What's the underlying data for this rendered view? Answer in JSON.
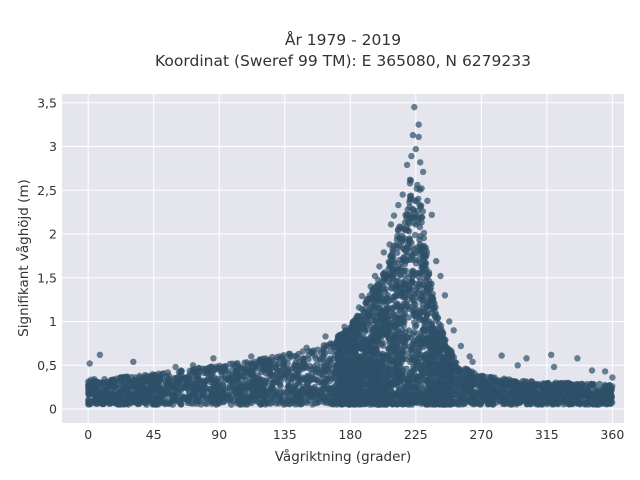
{
  "chart_data": {
    "type": "scatter",
    "title": "År 1979 - 2019",
    "subtitle": "Koordinat (Sweref 99 TM): E 365080, N 6279233",
    "xlabel": "Vågriktning (grader)",
    "ylabel": "Signifikant våghöjd (m)",
    "xlim": [
      -18,
      368
    ],
    "ylim": [
      -0.16,
      3.6
    ],
    "xticks": [
      0,
      45,
      90,
      135,
      180,
      225,
      270,
      315,
      360
    ],
    "xtick_labels": [
      "0",
      "45",
      "90",
      "135",
      "180",
      "225",
      "270",
      "315",
      "360"
    ],
    "yticks": [
      0,
      0.5,
      1,
      1.5,
      2,
      2.5,
      3,
      3.5
    ],
    "ytick_labels": [
      "0",
      "0,5",
      "1",
      "1,5",
      "2",
      "2,5",
      "3",
      "3,5"
    ],
    "grid": true,
    "plot_background": "#e5e5ee",
    "grid_color": "#ffffff",
    "marker_color": "#2e5068",
    "point_opacity": 0.7,
    "envelope": {
      "x": [
        0,
        20,
        45,
        90,
        135,
        160,
        180,
        195,
        205,
        212,
        218,
        222,
        225,
        228,
        232,
        238,
        245,
        255,
        270,
        300,
        330,
        360
      ],
      "y": [
        0.34,
        0.36,
        0.4,
        0.5,
        0.62,
        0.72,
        0.95,
        1.35,
        1.65,
        2.0,
        2.4,
        2.65,
        2.65,
        2.55,
        1.9,
        1.2,
        0.8,
        0.5,
        0.38,
        0.32,
        0.3,
        0.28
      ]
    },
    "points": [
      {
        "x": 224,
        "y": 3.45
      },
      {
        "x": 227,
        "y": 3.25
      },
      {
        "x": 223,
        "y": 3.13
      },
      {
        "x": 227,
        "y": 3.11
      },
      {
        "x": 225,
        "y": 2.97
      },
      {
        "x": 222,
        "y": 2.89
      },
      {
        "x": 228,
        "y": 2.82
      },
      {
        "x": 219,
        "y": 2.79
      },
      {
        "x": 230,
        "y": 2.71
      },
      {
        "x": 221,
        "y": 2.62
      },
      {
        "x": 229,
        "y": 2.52
      },
      {
        "x": 216,
        "y": 2.45
      },
      {
        "x": 233,
        "y": 2.38
      },
      {
        "x": 213,
        "y": 2.33
      },
      {
        "x": 210,
        "y": 2.21
      },
      {
        "x": 236,
        "y": 2.22
      },
      {
        "x": 208,
        "y": 2.11
      },
      {
        "x": 207,
        "y": 1.88
      },
      {
        "x": 203,
        "y": 1.79
      },
      {
        "x": 239,
        "y": 1.69
      },
      {
        "x": 200,
        "y": 1.63
      },
      {
        "x": 242,
        "y": 1.52
      },
      {
        "x": 197,
        "y": 1.52
      },
      {
        "x": 194,
        "y": 1.4
      },
      {
        "x": 245,
        "y": 1.3
      },
      {
        "x": 188,
        "y": 1.29
      },
      {
        "x": 191,
        "y": 1.21
      },
      {
        "x": 248,
        "y": 1.0
      },
      {
        "x": 186,
        "y": 1.16
      },
      {
        "x": 182,
        "y": 1.0
      },
      {
        "x": 251,
        "y": 0.9
      },
      {
        "x": 176,
        "y": 0.94
      },
      {
        "x": 256,
        "y": 0.72
      },
      {
        "x": 262,
        "y": 0.6
      },
      {
        "x": 264,
        "y": 0.54
      },
      {
        "x": 8,
        "y": 0.62
      },
      {
        "x": 1,
        "y": 0.52
      },
      {
        "x": 31,
        "y": 0.54
      },
      {
        "x": 284,
        "y": 0.61
      },
      {
        "x": 301,
        "y": 0.58
      },
      {
        "x": 318,
        "y": 0.62
      },
      {
        "x": 336,
        "y": 0.58
      },
      {
        "x": 295,
        "y": 0.5
      },
      {
        "x": 355,
        "y": 0.43
      },
      {
        "x": 360,
        "y": 0.36
      },
      {
        "x": 86,
        "y": 0.58
      },
      {
        "x": 112,
        "y": 0.6
      },
      {
        "x": 150,
        "y": 0.7
      },
      {
        "x": 163,
        "y": 0.83
      },
      {
        "x": 60,
        "y": 0.48
      },
      {
        "x": 72,
        "y": 0.5
      },
      {
        "x": 320,
        "y": 0.48
      },
      {
        "x": 346,
        "y": 0.44
      }
    ]
  }
}
